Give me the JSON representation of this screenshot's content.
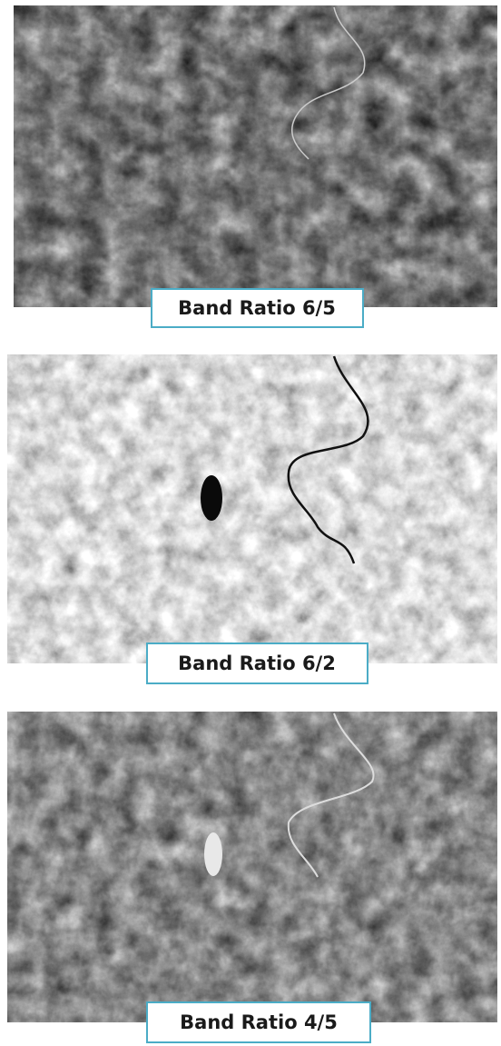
{
  "panels": [
    {
      "label": "Band Ratio 6/5"
    },
    {
      "label": "Band Ratio 6/2"
    },
    {
      "label": "Band Ratio 4/5"
    }
  ]
}
